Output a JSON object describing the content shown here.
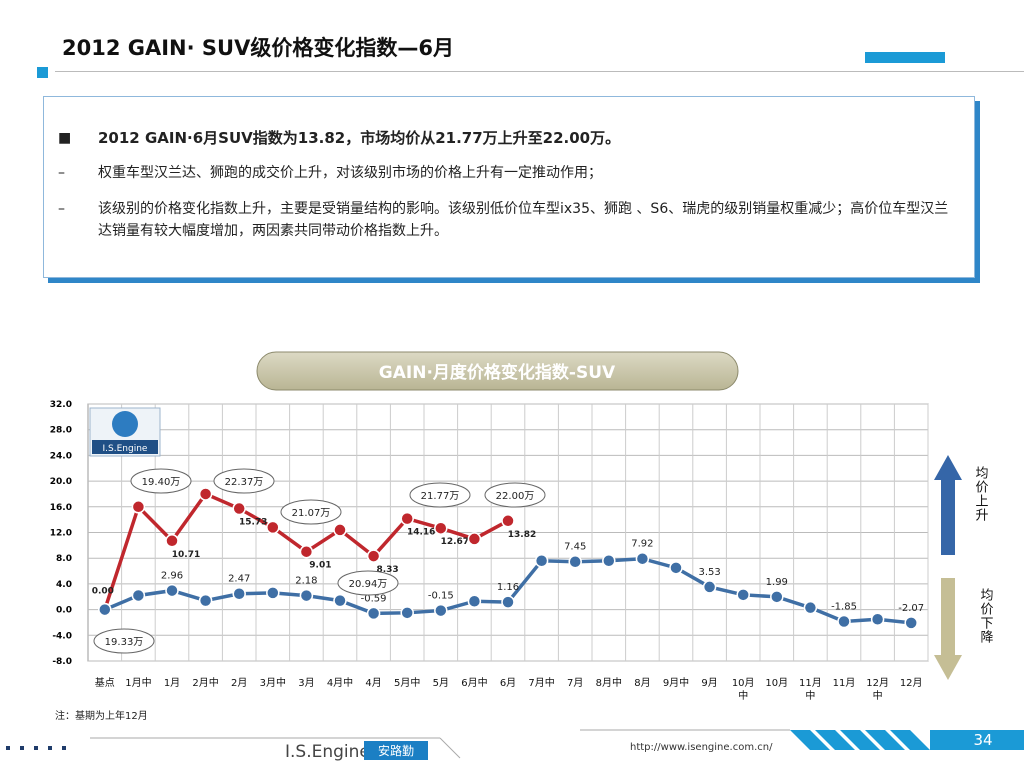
{
  "header": {
    "title": "2012 GAIN· SUV级价格变化指数—6月"
  },
  "bullets": {
    "main": "2012 GAIN·6月SUV指数为13.82，市场均价从21.77万上升至22.00万。",
    "items": [
      "权重车型汉兰达、狮跑的成交价上升，对该级别市场的价格上升有一定推动作用；",
      "该级别的价格变化指数上升，主要是受销量结构的影响。该级别低价位车型ix35、狮跑 、S6、瑞虎的级别销量权重减少；高价位车型汉兰达销量有较大幅度增加，两因素共同带动价格指数上升。"
    ]
  },
  "chart_data": {
    "type": "line",
    "title": "GAIN·月度价格变化指数-SUV",
    "logo": "I.S.Engine",
    "categories": [
      "基点",
      "1月中",
      "1月",
      "2月中",
      "2月",
      "3月中",
      "3月",
      "4月中",
      "4月",
      "5月中",
      "5月",
      "6月中",
      "6月",
      "7月中",
      "7月",
      "8月中",
      "8月",
      "9月中",
      "9月",
      "10月中",
      "10月",
      "11月中",
      "11月",
      "12月中",
      "12月"
    ],
    "series": [
      {
        "color": "#c0272d",
        "values": [
          0.0,
          16.0,
          10.71,
          18.0,
          15.73,
          12.8,
          9.01,
          12.4,
          8.33,
          14.16,
          12.67,
          11.0,
          13.82,
          null,
          null,
          null,
          null,
          null,
          null,
          null,
          null,
          null,
          null,
          null,
          null
        ],
        "value_labels": [
          "0.00",
          null,
          "10.71",
          null,
          "15.73",
          null,
          "9.01",
          null,
          "8.33",
          "14.16",
          "12.67",
          null,
          "13.82",
          null,
          null,
          null,
          null,
          null,
          null,
          null,
          null,
          null,
          null,
          null,
          null
        ]
      },
      {
        "color": "#3f6fa5",
        "values": [
          0.0,
          2.2,
          2.96,
          1.4,
          2.47,
          2.6,
          2.18,
          1.4,
          -0.59,
          -0.5,
          -0.15,
          1.3,
          1.16,
          7.6,
          7.45,
          7.6,
          7.92,
          6.5,
          3.53,
          2.3,
          1.99,
          0.3,
          -1.85,
          -1.5,
          -2.07
        ],
        "value_labels": [
          null,
          null,
          "2.96",
          null,
          "2.47",
          null,
          "2.18",
          null,
          "-0.59",
          null,
          "-0.15",
          null,
          "1.16",
          null,
          "7.45",
          null,
          "7.92",
          null,
          "3.53",
          null,
          "1.99",
          null,
          "-1.85",
          null,
          "-2.07"
        ]
      }
    ],
    "ylim": [
      -8,
      32
    ],
    "yticks": [
      {
        "value": 32,
        "label": "32.0"
      },
      {
        "value": 28,
        "label": "28.0"
      },
      {
        "value": 24,
        "label": "24.0"
      },
      {
        "value": 20,
        "label": "20.0"
      },
      {
        "value": 16,
        "label": "16.0"
      },
      {
        "value": 12,
        "label": "12.0"
      },
      {
        "value": 8,
        "label": "8.0"
      },
      {
        "value": 4,
        "label": "4.0"
      },
      {
        "value": 0,
        "label": "0.0"
      },
      {
        "value": -4,
        "label": "-4.0"
      },
      {
        "value": -8,
        "label": "-8.0"
      }
    ],
    "grid": true,
    "annotations": [
      "19.40万",
      "22.37万",
      "21.07万",
      "21.77万",
      "22.00万",
      "20.94万",
      "19.33万"
    ],
    "legend": {
      "up": "均价上升",
      "down": "均价下降"
    },
    "note": "注：基期为上年12月"
  },
  "footer": {
    "brand": "I.S.Engine",
    "brand_cn": "安路勤",
    "url": "http://www.isengine.com.cn/",
    "page": "34"
  }
}
